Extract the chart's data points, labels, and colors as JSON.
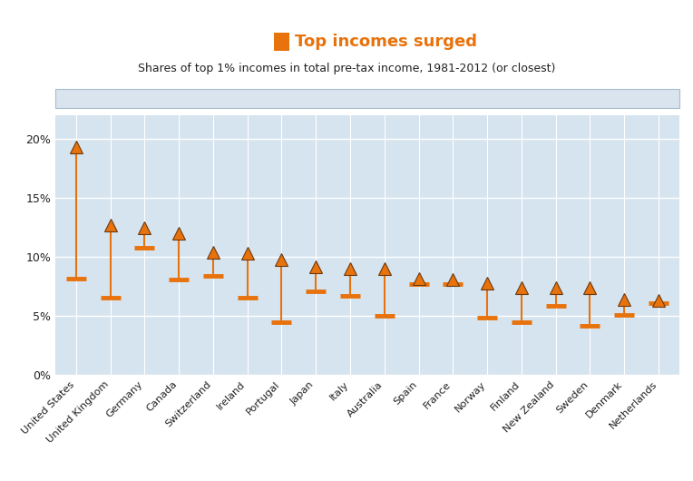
{
  "subtitle": "Shares of top 1% incomes in total pre-tax income, 1981-2012 (or closest)",
  "countries": [
    "United States",
    "United Kingdom",
    "Germany",
    "Canada",
    "Switzerland",
    "Ireland",
    "Portugal",
    "Japan",
    "Italy",
    "Australia",
    "Spain",
    "France",
    "Norway",
    "Finland",
    "New Zealand",
    "Sweden",
    "Denmark",
    "Netherlands"
  ],
  "val_2012": [
    19.3,
    12.7,
    12.5,
    12.0,
    10.4,
    10.3,
    9.8,
    9.2,
    9.0,
    9.0,
    8.2,
    8.1,
    7.8,
    7.4,
    7.4,
    7.4,
    6.4,
    6.3
  ],
  "val_1981": [
    8.2,
    6.6,
    10.8,
    8.1,
    8.4,
    6.6,
    4.5,
    7.1,
    6.7,
    5.0,
    7.7,
    7.7,
    4.9,
    4.5,
    5.9,
    4.2,
    5.1,
    6.1
  ],
  "orange_color": "#E8720C",
  "plot_bg": "#D6E4F0",
  "grid_color": "#FFFFFF",
  "fig_bg": "#FFFFFF",
  "legend_bg": "#D9E4EF",
  "legend_edge": "#AABBCC",
  "ylim": [
    0,
    22
  ],
  "yticks": [
    0,
    5,
    10,
    15,
    20
  ],
  "ytick_labels": [
    "0%",
    "5%",
    "10%",
    "15%",
    "20%"
  ]
}
